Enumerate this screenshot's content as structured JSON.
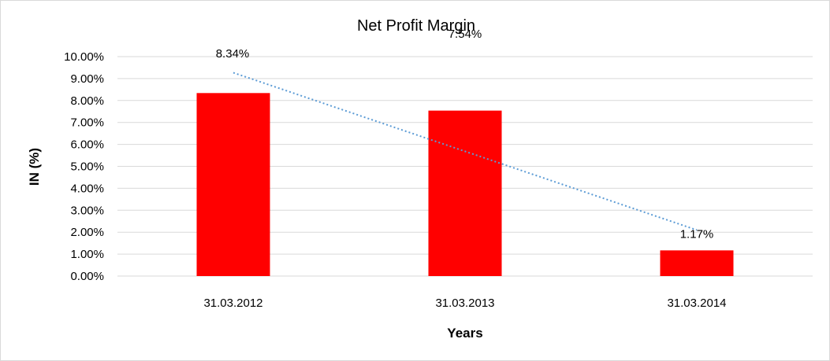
{
  "chart_data": {
    "type": "bar",
    "title": "Net Profit Margin",
    "xlabel": "Years",
    "ylabel": "IN (%)",
    "categories": [
      "31.03.2012",
      "31.03.2013",
      "31.03.2014"
    ],
    "values": [
      8.34,
      7.54,
      1.17
    ],
    "data_labels": [
      "8.34%",
      "7.54%",
      "1.17%"
    ],
    "ylim": [
      0,
      10
    ],
    "yticks": [
      "0.00%",
      "1.00%",
      "2.00%",
      "3.00%",
      "4.00%",
      "5.00%",
      "6.00%",
      "7.00%",
      "8.00%",
      "9.00%",
      "10.00%"
    ],
    "trendline": "linear",
    "grid": true,
    "legend": "none",
    "colors": {
      "bar": "#ff0000",
      "trendline": "#5b9bd5"
    }
  }
}
